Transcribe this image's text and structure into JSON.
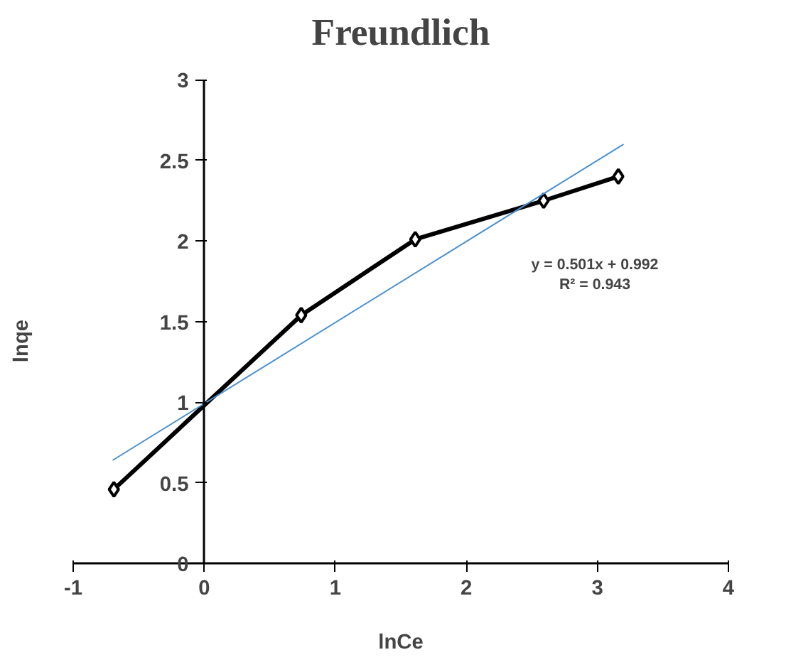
{
  "chart_data": {
    "type": "line",
    "title": "Freundlich",
    "xlabel": "lnCe",
    "ylabel": "lnqe",
    "xlim": [
      -1,
      4
    ],
    "xticks": [
      -1,
      0,
      1,
      2,
      3,
      4
    ],
    "ylim": [
      0,
      3
    ],
    "yticks": [
      0,
      0.5,
      1,
      1.5,
      2,
      2.5,
      3
    ],
    "grid": false,
    "series": [
      {
        "x": [
          -0.69,
          0.74,
          1.61,
          2.59,
          3.16
        ],
        "values": [
          0.46,
          1.54,
          2.01,
          2.25,
          2.4
        ],
        "color": "#000000",
        "marker": "diamond"
      },
      {
        "x": [
          -0.7,
          3.2
        ],
        "values": [
          0.64,
          2.6
        ],
        "color": "#4a90d0",
        "marker": "none"
      }
    ],
    "annotations": [
      "y = 0.501x + 0.992",
      "R² = 0.943"
    ]
  }
}
